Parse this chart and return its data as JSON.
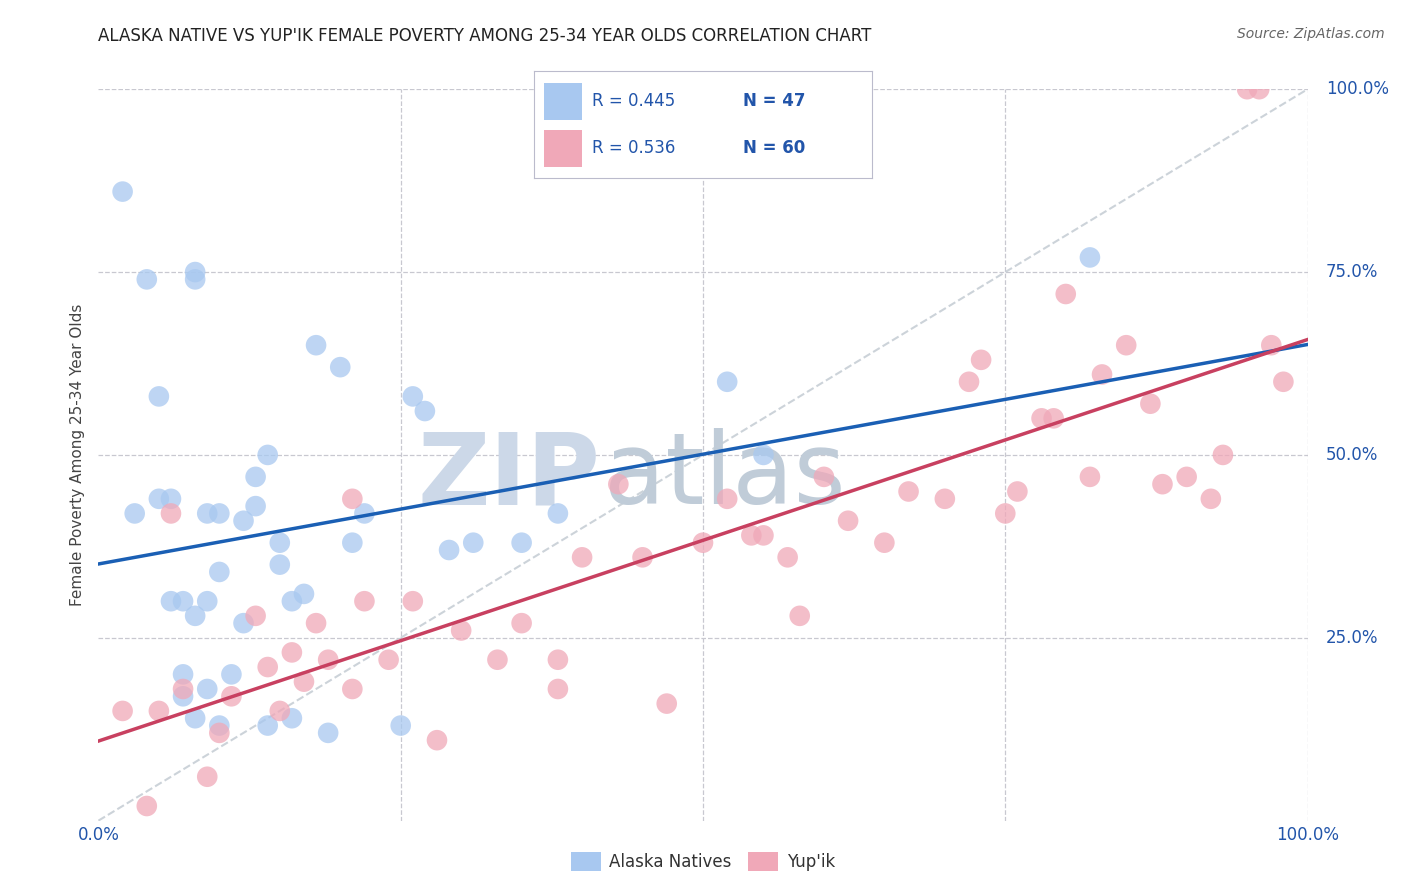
{
  "title": "ALASKA NATIVE VS YUP'IK FEMALE POVERTY AMONG 25-34 YEAR OLDS CORRELATION CHART",
  "source": "Source: ZipAtlas.com",
  "ylabel": "Female Poverty Among 25-34 Year Olds",
  "xlim": [
    0,
    1
  ],
  "ylim": [
    0,
    1
  ],
  "legend_label1": "Alaska Natives",
  "legend_label2": "Yup'ik",
  "legend_r1": "R = 0.445",
  "legend_n1": "N = 47",
  "legend_r2": "R = 0.536",
  "legend_n2": "N = 60",
  "alaska_color": "#a8c8f0",
  "yupik_color": "#f0a8b8",
  "alaska_line_color": "#1a5fb4",
  "yupik_line_color": "#c84060",
  "diagonal_color": "#c0c8d0",
  "background_color": "#ffffff",
  "watermark_zip_color": "#ccd8e8",
  "watermark_atlas_color": "#c0ccd8",
  "alaska_x": [
    0.02,
    0.03,
    0.04,
    0.05,
    0.05,
    0.06,
    0.06,
    0.07,
    0.07,
    0.07,
    0.08,
    0.08,
    0.08,
    0.08,
    0.09,
    0.09,
    0.09,
    0.1,
    0.1,
    0.1,
    0.11,
    0.12,
    0.12,
    0.13,
    0.13,
    0.14,
    0.14,
    0.15,
    0.15,
    0.16,
    0.16,
    0.17,
    0.18,
    0.19,
    0.2,
    0.21,
    0.22,
    0.25,
    0.26,
    0.27,
    0.29,
    0.31,
    0.35,
    0.38,
    0.52,
    0.55,
    0.82
  ],
  "alaska_y": [
    0.86,
    0.42,
    0.74,
    0.58,
    0.44,
    0.3,
    0.44,
    0.2,
    0.3,
    0.17,
    0.74,
    0.75,
    0.14,
    0.28,
    0.3,
    0.18,
    0.42,
    0.13,
    0.34,
    0.42,
    0.2,
    0.27,
    0.41,
    0.47,
    0.43,
    0.13,
    0.5,
    0.35,
    0.38,
    0.14,
    0.3,
    0.31,
    0.65,
    0.12,
    0.62,
    0.38,
    0.42,
    0.13,
    0.58,
    0.56,
    0.37,
    0.38,
    0.38,
    0.42,
    0.6,
    0.5,
    0.77
  ],
  "yupik_x": [
    0.02,
    0.04,
    0.05,
    0.06,
    0.07,
    0.09,
    0.1,
    0.11,
    0.13,
    0.14,
    0.15,
    0.16,
    0.17,
    0.18,
    0.19,
    0.21,
    0.21,
    0.22,
    0.24,
    0.26,
    0.28,
    0.3,
    0.33,
    0.35,
    0.38,
    0.38,
    0.4,
    0.43,
    0.45,
    0.47,
    0.5,
    0.52,
    0.54,
    0.55,
    0.57,
    0.58,
    0.6,
    0.62,
    0.65,
    0.67,
    0.7,
    0.72,
    0.73,
    0.75,
    0.76,
    0.78,
    0.79,
    0.8,
    0.82,
    0.83,
    0.85,
    0.87,
    0.88,
    0.9,
    0.92,
    0.93,
    0.95,
    0.96,
    0.97,
    0.98
  ],
  "yupik_y": [
    0.15,
    0.02,
    0.15,
    0.42,
    0.18,
    0.06,
    0.12,
    0.17,
    0.28,
    0.21,
    0.15,
    0.23,
    0.19,
    0.27,
    0.22,
    0.18,
    0.44,
    0.3,
    0.22,
    0.3,
    0.11,
    0.26,
    0.22,
    0.27,
    0.22,
    0.18,
    0.36,
    0.46,
    0.36,
    0.16,
    0.38,
    0.44,
    0.39,
    0.39,
    0.36,
    0.28,
    0.47,
    0.41,
    0.38,
    0.45,
    0.44,
    0.6,
    0.63,
    0.42,
    0.45,
    0.55,
    0.55,
    0.72,
    0.47,
    0.61,
    0.65,
    0.57,
    0.46,
    0.47,
    0.44,
    0.5,
    1.0,
    1.0,
    0.65,
    0.6
  ]
}
